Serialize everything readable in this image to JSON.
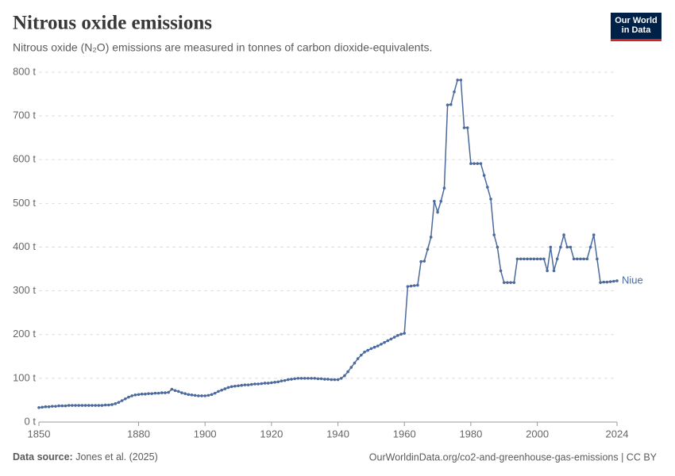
{
  "chart_data": {
    "type": "line",
    "title": "Nitrous oxide emissions",
    "subtitle": "Nitrous oxide (N₂O) emissions are measured in tonnes of carbon dioxide-equivalents.",
    "logo": "Our World in Data",
    "source_label": "Data source:",
    "source": "Jones et al. (2025)",
    "url": "OurWorldinData.org/co2-and-greenhouse-gas-emissions | CC BY",
    "xlim": [
      1850,
      2024
    ],
    "ylim": [
      0,
      800
    ],
    "xticks": [
      1850,
      1880,
      1900,
      1920,
      1940,
      1960,
      1980,
      2000,
      2024
    ],
    "yticks": [
      {
        "value": 0,
        "label": "0 t"
      },
      {
        "value": 100,
        "label": "100 t"
      },
      {
        "value": 200,
        "label": "200 t"
      },
      {
        "value": 300,
        "label": "300 t"
      },
      {
        "value": 400,
        "label": "400 t"
      },
      {
        "value": 500,
        "label": "500 t"
      },
      {
        "value": 600,
        "label": "600 t"
      },
      {
        "value": 700,
        "label": "700 t"
      },
      {
        "value": 800,
        "label": "800 t"
      }
    ],
    "grid": true,
    "x": [
      1850,
      1851,
      1852,
      1853,
      1854,
      1855,
      1856,
      1857,
      1858,
      1859,
      1860,
      1861,
      1862,
      1863,
      1864,
      1865,
      1866,
      1867,
      1868,
      1869,
      1870,
      1871,
      1872,
      1873,
      1874,
      1875,
      1876,
      1877,
      1878,
      1879,
      1880,
      1881,
      1882,
      1883,
      1884,
      1885,
      1886,
      1887,
      1888,
      1889,
      1890,
      1891,
      1892,
      1893,
      1894,
      1895,
      1896,
      1897,
      1898,
      1899,
      1900,
      1901,
      1902,
      1903,
      1904,
      1905,
      1906,
      1907,
      1908,
      1909,
      1910,
      1911,
      1912,
      1913,
      1914,
      1915,
      1916,
      1917,
      1918,
      1919,
      1920,
      1921,
      1922,
      1923,
      1924,
      1925,
      1926,
      1927,
      1928,
      1929,
      1930,
      1931,
      1932,
      1933,
      1934,
      1935,
      1936,
      1937,
      1938,
      1939,
      1940,
      1941,
      1942,
      1943,
      1944,
      1945,
      1946,
      1947,
      1948,
      1949,
      1950,
      1951,
      1952,
      1953,
      1954,
      1955,
      1956,
      1957,
      1958,
      1959,
      1960,
      1961,
      1962,
      1963,
      1964,
      1965,
      1966,
      1967,
      1968,
      1969,
      1970,
      1971,
      1972,
      1973,
      1974,
      1975,
      1976,
      1977,
      1978,
      1979,
      1980,
      1981,
      1982,
      1983,
      1984,
      1985,
      1986,
      1987,
      1988,
      1989,
      1990,
      1991,
      1992,
      1993,
      1994,
      1995,
      1996,
      1997,
      1998,
      1999,
      2000,
      2001,
      2002,
      2003,
      2004,
      2005,
      2006,
      2007,
      2008,
      2009,
      2010,
      2011,
      2012,
      2013,
      2014,
      2015,
      2016,
      2017,
      2018,
      2019,
      2020,
      2021,
      2022,
      2023,
      2024
    ],
    "series": [
      {
        "name": "Niue",
        "color": "#4c6a9c",
        "values": [
          33,
          34,
          35,
          35,
          36,
          36,
          37,
          37,
          37,
          38,
          38,
          38,
          38,
          38,
          38,
          38,
          38,
          38,
          38,
          38,
          39,
          39,
          40,
          42,
          45,
          49,
          53,
          57,
          60,
          62,
          63,
          64,
          64,
          65,
          65,
          66,
          66,
          67,
          67,
          68,
          75,
          72,
          70,
          67,
          65,
          63,
          62,
          61,
          60,
          60,
          60,
          61,
          63,
          66,
          70,
          73,
          76,
          79,
          81,
          82,
          83,
          84,
          85,
          85,
          86,
          87,
          87,
          88,
          89,
          89,
          90,
          91,
          92,
          94,
          95,
          97,
          98,
          99,
          100,
          100,
          100,
          100,
          100,
          100,
          99,
          99,
          98,
          98,
          97,
          97,
          97,
          100,
          106,
          115,
          125,
          135,
          145,
          153,
          160,
          164,
          168,
          171,
          174,
          178,
          182,
          186,
          190,
          194,
          198,
          201,
          203,
          310,
          311,
          312,
          313,
          367,
          368,
          395,
          423,
          505,
          480,
          505,
          535,
          725,
          726,
          755,
          782,
          782,
          673,
          673,
          591,
          591,
          591,
          591,
          564,
          537,
          510,
          428,
          400,
          346,
          319,
          319,
          319,
          319,
          373,
          373,
          373,
          373,
          373,
          373,
          373,
          373,
          373,
          346,
          400,
          346,
          373,
          400,
          428,
          400,
          400,
          373,
          373,
          373,
          373,
          373,
          400,
          428,
          373,
          319,
          320,
          320,
          321,
          322,
          323
        ]
      }
    ]
  }
}
